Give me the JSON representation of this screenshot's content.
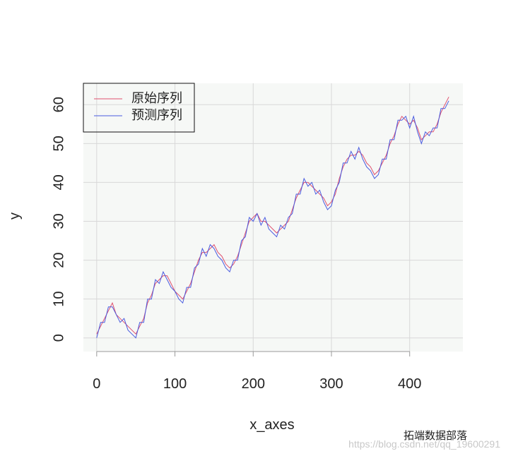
{
  "chart_data": {
    "type": "line",
    "xlabel": "x_axes",
    "ylabel": "y",
    "x": [
      0,
      5,
      10,
      15,
      20,
      25,
      30,
      35,
      40,
      45,
      50,
      55,
      60,
      65,
      70,
      75,
      80,
      85,
      90,
      95,
      100,
      105,
      110,
      115,
      120,
      125,
      130,
      135,
      140,
      145,
      150,
      155,
      160,
      165,
      170,
      175,
      180,
      185,
      190,
      195,
      200,
      205,
      210,
      215,
      220,
      225,
      230,
      235,
      240,
      245,
      250,
      255,
      260,
      265,
      270,
      275,
      280,
      285,
      290,
      295,
      300,
      305,
      310,
      315,
      320,
      325,
      330,
      335,
      340,
      345,
      350,
      355,
      360,
      365,
      370,
      375,
      380,
      385,
      390,
      395,
      400,
      405,
      410,
      415,
      420,
      425,
      430,
      435,
      440,
      445,
      450
    ],
    "series": [
      {
        "name": "原始序列",
        "color": "#e0506e",
        "values": [
          1,
          3,
          5,
          7,
          9,
          6,
          5,
          4,
          3,
          2,
          1,
          3,
          5,
          9,
          11,
          14,
          15,
          16,
          16,
          14,
          12,
          11,
          10,
          12,
          14,
          17,
          20,
          22,
          22,
          23,
          24,
          22,
          21,
          19,
          18,
          19,
          21,
          24,
          27,
          30,
          31,
          32,
          30,
          30,
          29,
          28,
          27,
          28,
          29,
          30,
          33,
          36,
          38,
          40,
          40,
          39,
          38,
          37,
          36,
          34,
          35,
          37,
          41,
          44,
          46,
          47,
          47,
          48,
          47,
          45,
          44,
          42,
          43,
          45,
          47,
          50,
          52,
          55,
          57,
          56,
          55,
          56,
          54,
          51,
          52,
          53,
          53,
          55,
          58,
          60,
          62
        ]
      },
      {
        "name": "预测序列",
        "color": "#4a5ce0",
        "values": [
          0,
          4,
          4,
          8,
          8,
          6,
          4,
          5,
          2,
          1,
          0,
          4,
          4,
          10,
          10,
          15,
          14,
          17,
          15,
          13,
          12,
          10,
          9,
          13,
          13,
          18,
          19,
          23,
          21,
          24,
          23,
          21,
          20,
          18,
          17,
          20,
          20,
          25,
          26,
          31,
          30,
          32,
          29,
          31,
          28,
          27,
          26,
          29,
          28,
          31,
          32,
          37,
          37,
          41,
          39,
          40,
          37,
          38,
          35,
          33,
          34,
          38,
          40,
          45,
          45,
          48,
          46,
          49,
          46,
          44,
          43,
          41,
          42,
          46,
          46,
          51,
          51,
          56,
          56,
          57,
          54,
          57,
          53,
          50,
          53,
          52,
          54,
          54,
          59,
          59,
          61
        ]
      }
    ],
    "xlim": [
      -17,
      468
    ],
    "ylim": [
      -3.5,
      65.5
    ],
    "xticks": [
      0,
      100,
      200,
      300,
      400
    ],
    "yticks": [
      0,
      10,
      20,
      30,
      40,
      50,
      60
    ],
    "grid": true,
    "legend": "top-left",
    "watermark": "拓端数据部落",
    "watermark_url": "https://blog.csdn.net/qq_19600291"
  }
}
